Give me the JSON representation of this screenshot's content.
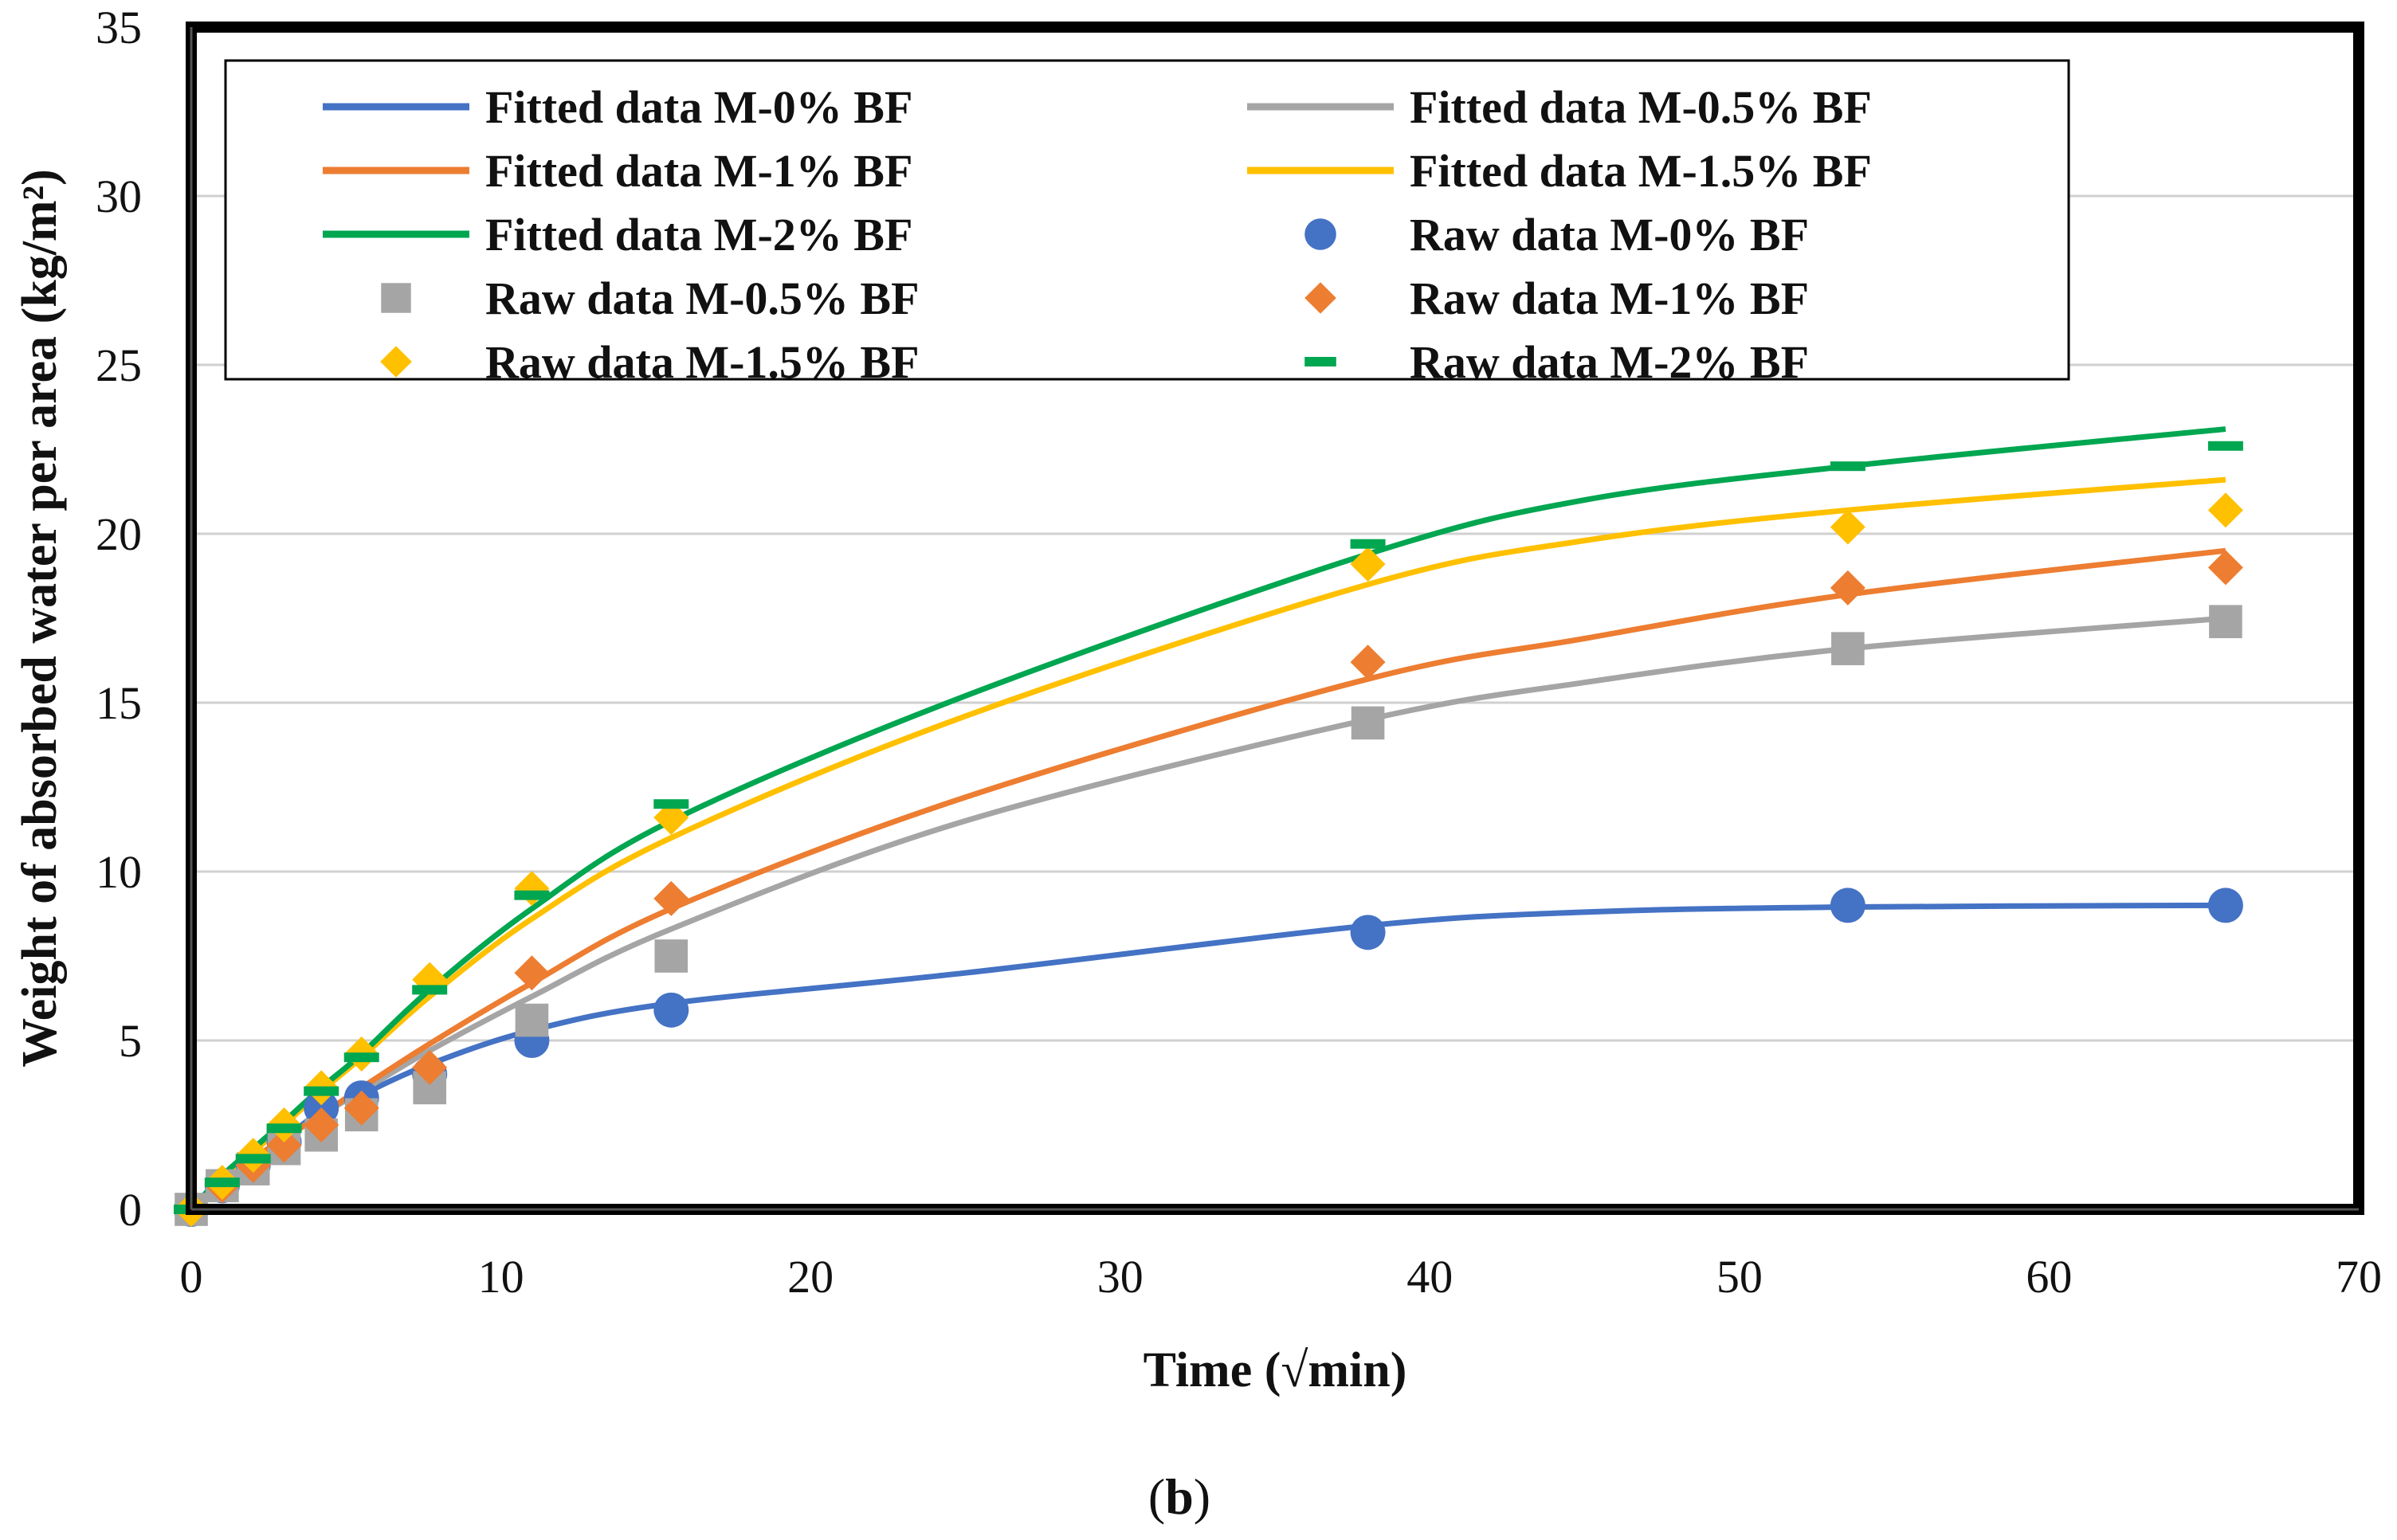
{
  "chart_data": {
    "type": "scatter",
    "title": "",
    "xlabel": "Time (√min)",
    "ylabel": "Weight of absorbed water per area (kg/m²)",
    "xlim": [
      0,
      70
    ],
    "ylim": [
      0,
      35
    ],
    "xticks": [
      0,
      10,
      20,
      30,
      40,
      50,
      60,
      70
    ],
    "yticks": [
      0,
      5,
      10,
      15,
      20,
      25,
      30,
      35
    ],
    "grid": "horizontal",
    "legend_position": "top",
    "panel_label_prefix": "(",
    "panel_label_bold": "b",
    "panel_label_suffix": ")",
    "fitted_series": [
      {
        "name": "Fitted data M-0% BF",
        "color": "#4472C4",
        "x": [
          0,
          1,
          2,
          3,
          4.2,
          5.5,
          7.7,
          11,
          15.5,
          25,
          38,
          45,
          53.5,
          65.7
        ],
        "y": [
          0,
          0.8,
          1.5,
          2.1,
          2.9,
          3.4,
          4.3,
          5.3,
          6.1,
          7.0,
          8.4,
          8.8,
          8.95,
          9.0
        ]
      },
      {
        "name": "Fitted data M-0.5% BF",
        "color": "#A5A5A5",
        "x": [
          0,
          1,
          2,
          3,
          4.2,
          5.5,
          7.7,
          11,
          15.5,
          25,
          38,
          45,
          53.5,
          65.7
        ],
        "y": [
          0,
          0.8,
          1.5,
          2.1,
          2.8,
          3.5,
          4.7,
          6.3,
          8.3,
          11.5,
          14.5,
          15.6,
          16.6,
          17.5
        ]
      },
      {
        "name": "Fitted data M-1% BF",
        "color": "#ED7D31",
        "x": [
          0,
          1,
          2,
          3,
          4.2,
          5.5,
          7.7,
          11,
          15.5,
          25,
          38,
          45,
          53.5,
          65.7
        ],
        "y": [
          0,
          0.8,
          1.5,
          2.1,
          2.8,
          3.6,
          4.9,
          6.7,
          8.9,
          12.2,
          15.7,
          16.9,
          18.2,
          19.5
        ]
      },
      {
        "name": "Fitted data M-1.5% BF",
        "color": "#FFC000",
        "x": [
          0,
          1,
          2,
          3,
          4.2,
          5.5,
          7.7,
          11,
          15.5,
          25,
          38,
          45,
          53.5,
          65.7
        ],
        "y": [
          0,
          0.9,
          1.7,
          2.5,
          3.5,
          4.5,
          6.3,
          8.6,
          11.0,
          14.6,
          18.5,
          19.8,
          20.7,
          21.6
        ]
      },
      {
        "name": "Fitted data M-2% BF",
        "color": "#00A650",
        "x": [
          0,
          1,
          2,
          3,
          4.2,
          5.5,
          7.7,
          11,
          15.5,
          25,
          38,
          45,
          53.5,
          65.7
        ],
        "y": [
          0,
          1.0,
          1.8,
          2.6,
          3.6,
          4.6,
          6.5,
          8.9,
          11.5,
          15.2,
          19.4,
          21.0,
          22.0,
          23.1
        ]
      }
    ],
    "raw_series": [
      {
        "name": "Raw data M-0% BF",
        "color": "#4472C4",
        "marker": "circle",
        "x": [
          0,
          1,
          2,
          3,
          4.2,
          5.5,
          7.7,
          11,
          15.5,
          38,
          53.5,
          65.7
        ],
        "y": [
          0,
          0.7,
          1.3,
          2.0,
          3.0,
          3.3,
          4.0,
          5.0,
          5.9,
          8.2,
          9.0,
          9.0
        ]
      },
      {
        "name": "Raw data M-0.5% BF",
        "color": "#A5A5A5",
        "marker": "square",
        "x": [
          0,
          1,
          2,
          3,
          4.2,
          5.5,
          7.7,
          11,
          15.5,
          38,
          53.5,
          65.7
        ],
        "y": [
          0,
          0.7,
          1.2,
          1.8,
          2.2,
          2.8,
          3.6,
          5.6,
          7.5,
          14.4,
          16.6,
          17.4
        ]
      },
      {
        "name": "Raw data M-1% BF",
        "color": "#ED7D31",
        "marker": "diamond",
        "x": [
          0,
          1,
          2,
          3,
          4.2,
          5.5,
          7.7,
          11,
          15.5,
          38,
          53.5,
          65.7
        ],
        "y": [
          0,
          0.7,
          1.3,
          1.9,
          2.5,
          3.0,
          4.2,
          7.0,
          9.2,
          16.2,
          18.4,
          19.0
        ]
      },
      {
        "name": "Raw data M-1.5% BF",
        "color": "#FFC000",
        "marker": "diamond",
        "x": [
          0,
          1,
          2,
          3,
          4.2,
          5.5,
          7.7,
          11,
          15.5,
          38,
          53.5,
          65.7
        ],
        "y": [
          0,
          0.8,
          1.6,
          2.5,
          3.6,
          4.6,
          6.8,
          9.5,
          11.6,
          19.1,
          20.2,
          20.7
        ]
      },
      {
        "name": "Raw data M-2% BF",
        "color": "#00A650",
        "marker": "dash",
        "x": [
          0,
          1,
          2,
          3,
          4.2,
          5.5,
          7.7,
          11,
          15.5,
          38,
          53.5,
          65.7
        ],
        "y": [
          0,
          0.8,
          1.5,
          2.4,
          3.5,
          4.5,
          6.5,
          9.3,
          12.0,
          19.7,
          22.0,
          22.6
        ]
      }
    ],
    "legend_entries": [
      "Fitted data M-0% BF",
      "Fitted data M-0.5% BF",
      "Fitted data M-1% BF",
      "Fitted data M-1.5% BF",
      "Fitted data M-2% BF",
      "Raw data M-0% BF",
      "Raw data M-0.5% BF",
      "Raw data M-1% BF",
      "Raw data M-1.5% BF",
      "Raw data M-2% BF"
    ]
  }
}
